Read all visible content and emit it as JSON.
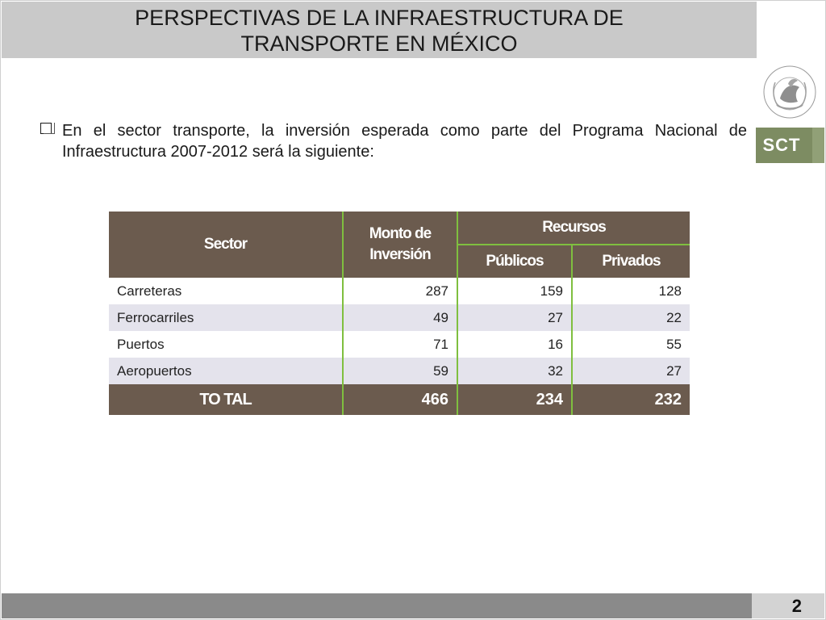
{
  "slide": {
    "title_line1": "PERSPECTIVAS DE LA INFRAESTRUCTURA DE",
    "title_line2": "TRANSPORTE EN MÉXICO",
    "bullet_text": "En el sector transporte, la inversión esperada como parte del Programa Nacional de Infraestructura 2007-2012 será la siguiente:",
    "page_number": "2",
    "logo_text": "SCT",
    "seal_icon": "mexican-coat-of-arms-seal",
    "seal_text": "ESTADOS UNIDOS MEXICANOS"
  },
  "table": {
    "headers": {
      "sector": "Sector",
      "monto": "Monto de Inversión",
      "recursos": "Recursos",
      "publicos": "Públicos",
      "privados": "Privados"
    },
    "rows": [
      {
        "sector": "Carreteras",
        "monto": "287",
        "publicos": "159",
        "privados": "128"
      },
      {
        "sector": "Ferrocarriles",
        "monto": "49",
        "publicos": "27",
        "privados": "22"
      },
      {
        "sector": "Puertos",
        "monto": "71",
        "publicos": "16",
        "privados": "55"
      },
      {
        "sector": "Aeropuertos",
        "monto": "59",
        "publicos": "32",
        "privados": "27"
      }
    ],
    "total": {
      "label": "TO TAL",
      "monto": "466",
      "publicos": "234",
      "privados": "232"
    }
  },
  "colors": {
    "header_brown": "#6b5b4e",
    "divider_green": "#7fbf3f",
    "row_shade": "#e4e3ec",
    "title_bar": "#c9c9c9",
    "sct_green": "#7d8c62",
    "footer_gray": "#8a8a8a"
  }
}
